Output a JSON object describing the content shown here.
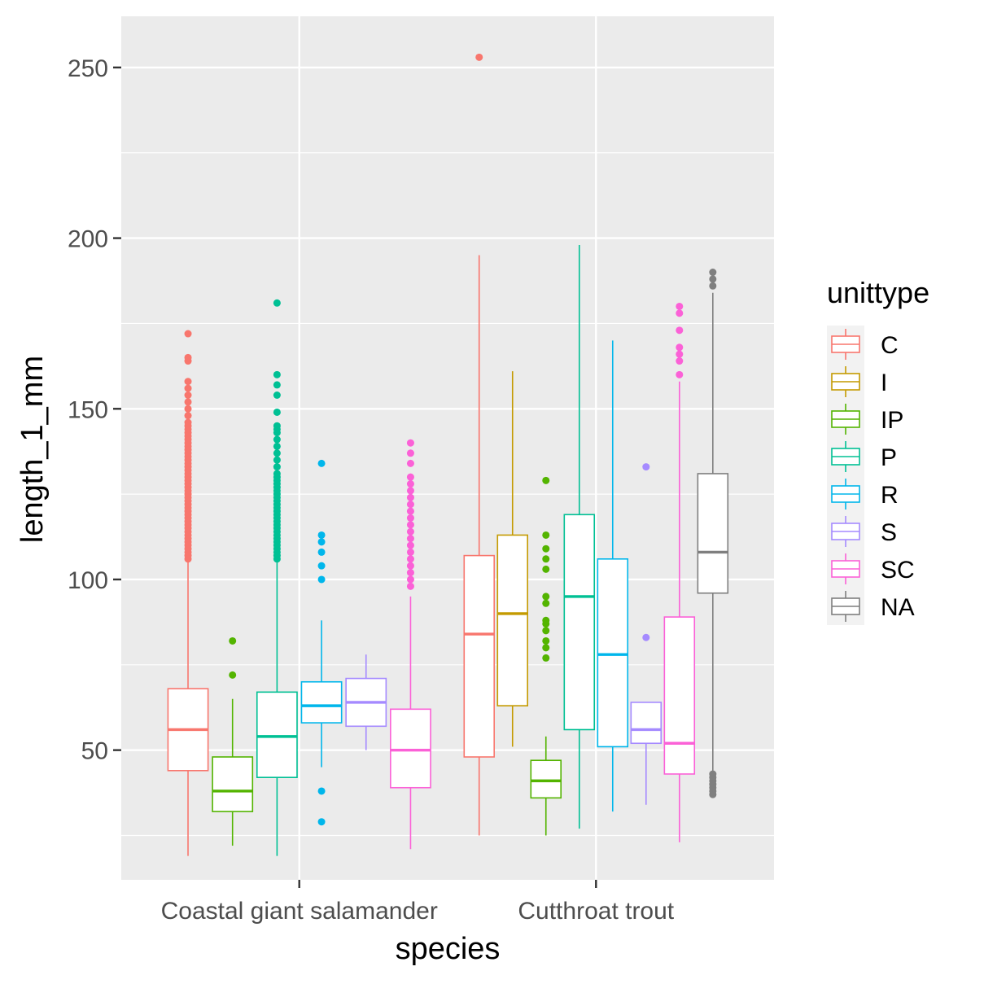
{
  "chart_data": {
    "type": "boxplot",
    "xlabel": "species",
    "ylabel": "length_1_mm",
    "ylim": [
      12,
      265
    ],
    "yticks": [
      "50",
      "100",
      "150",
      "200",
      "250"
    ],
    "categories": [
      "Coastal giant salamander",
      "Cutthroat trout"
    ],
    "legend": {
      "title": "unittype",
      "position": "right"
    },
    "grid": true,
    "background": "#ebebeb",
    "series": [
      {
        "name": "C",
        "color": "#f8766d",
        "boxes": [
          {
            "category": "Coastal giant salamander",
            "min": 19,
            "q1": 44,
            "median": 56,
            "q3": 68,
            "max": 105,
            "outliers": [
              106,
              107,
              108,
              109,
              110,
              111,
              112,
              113,
              114,
              115,
              116,
              117,
              118,
              119,
              120,
              121,
              122,
              123,
              124,
              125,
              126,
              127,
              128,
              129,
              130,
              131,
              132,
              133,
              134,
              135,
              136,
              137,
              138,
              139,
              140,
              141,
              142,
              143,
              144,
              145,
              146,
              148,
              150,
              152,
              154,
              156,
              158,
              164,
              165,
              172
            ]
          },
          {
            "category": "Cutthroat trout",
            "min": 25,
            "q1": 48,
            "median": 84,
            "q3": 107,
            "max": 195,
            "outliers": [
              253
            ]
          }
        ]
      },
      {
        "name": "I",
        "color": "#c49a00",
        "boxes": [
          {
            "category": "Cutthroat trout",
            "min": 51,
            "q1": 63,
            "median": 90,
            "q3": 113,
            "max": 161,
            "outliers": []
          }
        ]
      },
      {
        "name": "IP",
        "color": "#53b400",
        "boxes": [
          {
            "category": "Coastal giant salamander",
            "min": 22,
            "q1": 32,
            "median": 38,
            "q3": 48,
            "max": 65,
            "outliers": [
              72,
              82
            ]
          },
          {
            "category": "Cutthroat trout",
            "min": 25,
            "q1": 36,
            "median": 41,
            "q3": 47,
            "max": 54,
            "outliers": [
              77,
              80,
              82,
              85,
              87,
              88,
              93,
              95,
              103,
              106,
              109,
              113,
              129
            ]
          }
        ]
      },
      {
        "name": "P",
        "color": "#00c094",
        "boxes": [
          {
            "category": "Coastal giant salamander",
            "min": 19,
            "q1": 42,
            "median": 54,
            "q3": 67,
            "max": 105,
            "outliers": [
              106,
              107,
              108,
              109,
              110,
              111,
              112,
              113,
              114,
              115,
              116,
              117,
              118,
              119,
              120,
              121,
              122,
              123,
              124,
              125,
              126,
              127,
              128,
              129,
              130,
              131,
              133,
              135,
              137,
              139,
              141,
              143,
              144,
              145,
              149,
              154,
              157,
              160,
              181
            ]
          },
          {
            "category": "Cutthroat trout",
            "min": 27,
            "q1": 56,
            "median": 95,
            "q3": 119,
            "max": 198,
            "outliers": []
          }
        ]
      },
      {
        "name": "R",
        "color": "#00b6eb",
        "boxes": [
          {
            "category": "Coastal giant salamander",
            "min": 45,
            "q1": 58,
            "median": 63,
            "q3": 70,
            "max": 88,
            "outliers": [
              29,
              38,
              100,
              104,
              108,
              111,
              113,
              134
            ]
          },
          {
            "category": "Cutthroat trout",
            "min": 32,
            "q1": 51,
            "median": 78,
            "q3": 106,
            "max": 170,
            "outliers": []
          }
        ]
      },
      {
        "name": "S",
        "color": "#a58aff",
        "boxes": [
          {
            "category": "Coastal giant salamander",
            "min": 50,
            "q1": 57,
            "median": 64,
            "q3": 71,
            "max": 78,
            "outliers": []
          },
          {
            "category": "Cutthroat trout",
            "min": 34,
            "q1": 52,
            "median": 56,
            "q3": 64,
            "max": 64,
            "outliers": [
              83,
              133
            ]
          }
        ]
      },
      {
        "name": "SC",
        "color": "#fb61d7",
        "boxes": [
          {
            "category": "Coastal giant salamander",
            "min": 21,
            "q1": 39,
            "median": 50,
            "q3": 62,
            "max": 95,
            "outliers": [
              98,
              100,
              102,
              104,
              106,
              108,
              110,
              112,
              114,
              116,
              118,
              120,
              122,
              124,
              126,
              128,
              130,
              134,
              137,
              140
            ]
          },
          {
            "category": "Cutthroat trout",
            "min": 23,
            "q1": 43,
            "median": 52,
            "q3": 89,
            "max": 158,
            "outliers": [
              160,
              164,
              166,
              168,
              173,
              178,
              180
            ]
          }
        ]
      },
      {
        "name": "NA",
        "color": "#7f7f7f",
        "boxes": [
          {
            "category": "Cutthroat trout",
            "min": 44,
            "q1": 96,
            "median": 108,
            "q3": 131,
            "max": 184,
            "outliers": [
              37,
              38,
              39,
              40,
              41,
              42,
              43,
              186,
              188,
              190
            ]
          }
        ]
      }
    ]
  }
}
